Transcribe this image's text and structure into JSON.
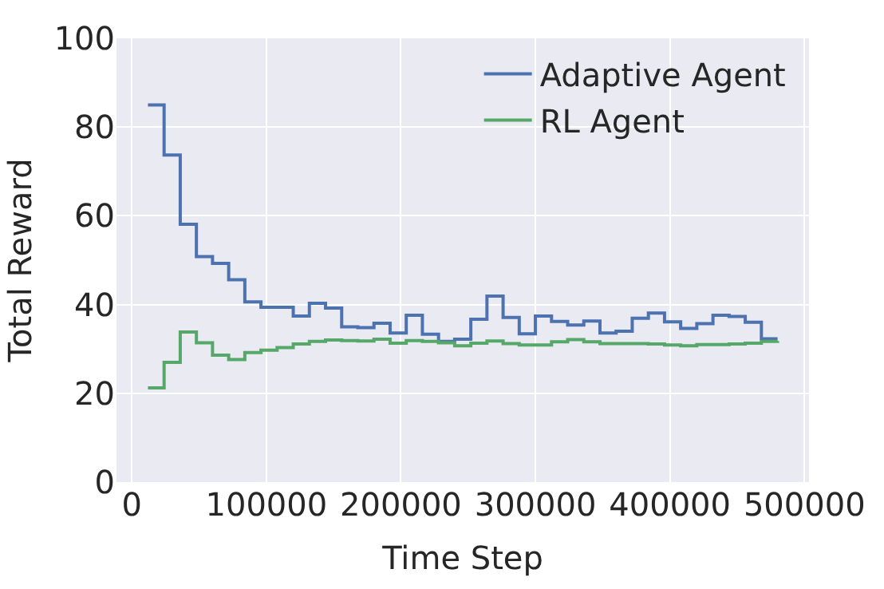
{
  "chart_data": {
    "type": "step",
    "xlabel": "Time Step",
    "ylabel": "Total Reward",
    "x": [
      12000,
      24000,
      36000,
      48000,
      60000,
      72000,
      84000,
      96000,
      108000,
      120000,
      132000,
      144000,
      156000,
      168000,
      180000,
      192000,
      204000,
      216000,
      228000,
      240000,
      252000,
      264000,
      276000,
      288000,
      300000,
      312000,
      324000,
      336000,
      348000,
      360000,
      372000,
      384000,
      396000,
      408000,
      420000,
      432000,
      444000,
      456000,
      468000,
      480000
    ],
    "series": [
      {
        "name": "Adaptive Agent",
        "color": "#4c72b0",
        "values": [
          85,
          73.7,
          58.1,
          50.8,
          49.3,
          45.6,
          40.6,
          39.4,
          39.4,
          37.4,
          40.3,
          39.2,
          35.0,
          34.8,
          35.8,
          33.6,
          37.6,
          33.3,
          31.7,
          32.2,
          36.7,
          41.9,
          37.1,
          33.4,
          37.4,
          36.2,
          35.4,
          36.3,
          33.6,
          34.0,
          36.9,
          38.1,
          36.1,
          34.6,
          35.7,
          37.6,
          37.3,
          36.0,
          32.3,
          32.3
        ]
      },
      {
        "name": "RL Agent",
        "color": "#55a868",
        "values": [
          21.2,
          27.0,
          33.8,
          31.4,
          28.6,
          27.6,
          29.2,
          29.7,
          30.3,
          31.1,
          31.7,
          32.0,
          31.9,
          31.8,
          32.2,
          31.3,
          31.9,
          31.7,
          31.4,
          30.7,
          31.3,
          31.8,
          31.2,
          30.9,
          30.9,
          31.6,
          32.1,
          31.6,
          31.2,
          31.2,
          31.2,
          31.1,
          30.9,
          30.7,
          31.0,
          31.0,
          31.1,
          31.3,
          31.7,
          31.8
        ]
      }
    ],
    "xlim": [
      -11400,
      503400
    ],
    "xticks": [
      0,
      100000,
      200000,
      300000,
      400000,
      500000
    ],
    "ylim": [
      0,
      100
    ],
    "yticks": [
      0,
      20,
      40,
      60,
      80,
      100
    ],
    "grid": true,
    "legend": "top right",
    "marker": "none",
    "line_style": "solid"
  }
}
